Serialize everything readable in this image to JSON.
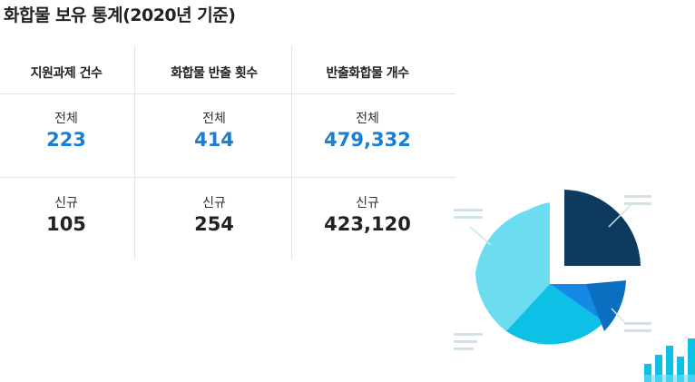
{
  "page": {
    "title": "화합물 보유 통계(2020년 기준)"
  },
  "table": {
    "columns": [
      "지원과제 건수",
      "화합물 반출 횟수",
      "반출화합물 개수"
    ],
    "rows": [
      {
        "label": "전체",
        "values": [
          "223",
          "414",
          "479,332"
        ]
      },
      {
        "label": "신규",
        "values": [
          "105",
          "254",
          "423,120"
        ]
      }
    ]
  },
  "colors": {
    "accent": "#1a7fd4",
    "pie_navy": "#0d3a5e",
    "pie_blue": "#0a6fc0",
    "pie_bright": "#1689e6",
    "pie_cyan": "#0ec0e6",
    "pie_light": "#6cdcf0",
    "line_gray": "#cfe3e8"
  },
  "icons": {
    "pie": "pie-chart-icon",
    "bars": "bar-chart-icon"
  }
}
